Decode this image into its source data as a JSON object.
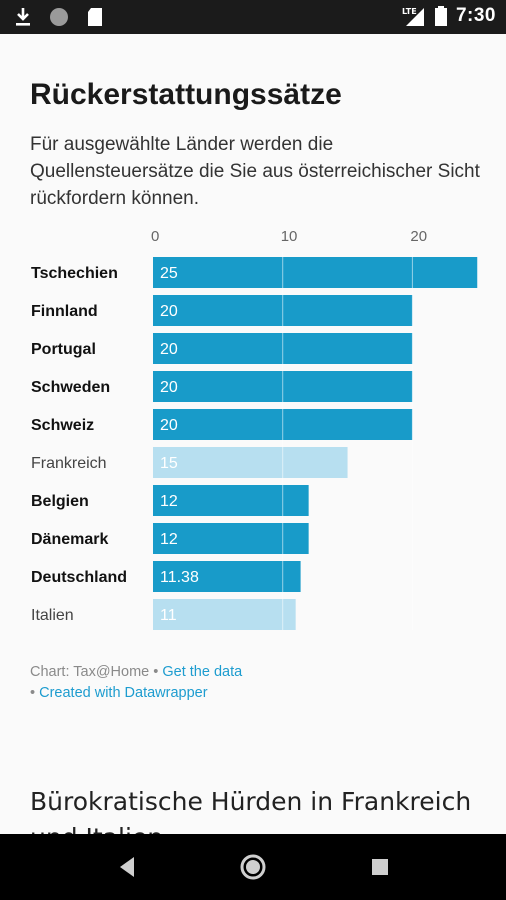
{
  "status_bar": {
    "time": "7:30",
    "network": "LTE",
    "icons": [
      "download-icon",
      "circle-icon",
      "sd-card-icon",
      "signal-icon",
      "battery-icon"
    ]
  },
  "article": {
    "title": "Rückerstattungssätze",
    "description": "Für ausgewählte Länder werden die Quellensteuersätze die Sie aus österreichischer Sicht rückfordern können.",
    "source_prefix": "Chart: Tax@Home • ",
    "source_link": "Get the data",
    "credit_prefix": "• ",
    "credit_link": "Created with Datawrapper",
    "next_heading": "Bürokratische Hürden in Frankreich und Italien"
  },
  "chart_data": {
    "type": "bar",
    "orientation": "horizontal",
    "title": "Rückerstattungssätze",
    "categories": [
      "Tschechien",
      "Finnland",
      "Portugal",
      "Schweden",
      "Schweiz",
      "Frankreich",
      "Belgien",
      "Dänemark",
      "Deutschland",
      "Italien"
    ],
    "values": [
      25,
      20,
      20,
      20,
      20,
      15,
      12,
      12,
      11.38,
      11
    ],
    "value_labels": [
      "25",
      "20",
      "20",
      "20",
      "20",
      "15",
      "12",
      "12",
      "11.38",
      "11"
    ],
    "highlighted": [
      true,
      true,
      true,
      true,
      true,
      false,
      true,
      true,
      true,
      false
    ],
    "xlim": [
      0,
      25
    ],
    "x_ticks": [
      0,
      10,
      20
    ],
    "grid": true,
    "colors": {
      "bar": "#189bc9",
      "bar_muted": "#b7dff0"
    }
  }
}
